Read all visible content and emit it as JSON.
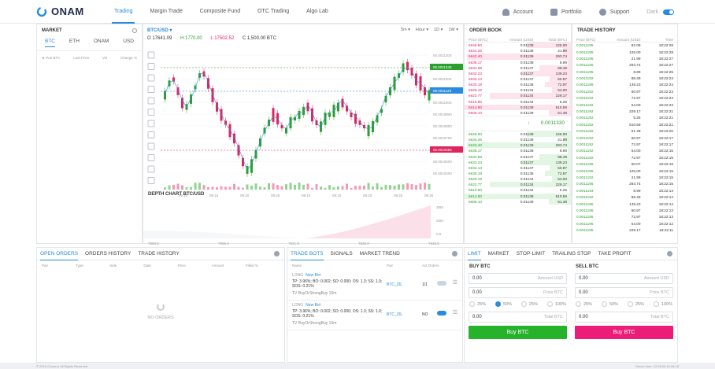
{
  "brand": {
    "name": "ONAM",
    "accent": "#2a8bdd"
  },
  "nav": {
    "items": [
      "Trading",
      "Margin Trade",
      "Composite Fund",
      "OTC Trading",
      "Algo Lab"
    ],
    "active": "Trading"
  },
  "topright": {
    "account": "Account",
    "portfolio": "Portfolio",
    "support": "Support",
    "theme": "Dark"
  },
  "market": {
    "title": "MARKET",
    "tabs": [
      "BTC",
      "ETH",
      "ONAM",
      "USD"
    ],
    "cols": [
      "Pair BTC",
      "Last Price",
      "Vol",
      "Change %"
    ]
  },
  "chart": {
    "pair": "BTC/USD",
    "ohlc": {
      "o": "O 17641.09",
      "h": "H 1770.00",
      "l": "L 17502.52",
      "c": "C 1,500.00 BTC"
    },
    "timeframes": [
      "5m",
      "Hour",
      "1D",
      "1W"
    ],
    "price_labels": [
      "00.0011300",
      "00.0011348",
      "00.0011200",
      "00.0011123",
      "00.0011000",
      "00.0010900",
      "00.0010800",
      "00.0010700",
      "00.0010565",
      "00.0010500",
      "00.0010400"
    ],
    "time_labels": [
      "09:10",
      "09:15",
      "09:20",
      "09:25",
      "09:10",
      "09:15",
      "09:20",
      "09:25",
      "09:30"
    ],
    "depth_title": "DEPTH CHART  BTC/USD",
    "depth_y": [
      "35M",
      "25M",
      "0.0"
    ],
    "depth_x": [
      "7893.8",
      "7898.0",
      "7921.0",
      "7938.9",
      "7938.5"
    ]
  },
  "orderbook": {
    "title": "ORDER BOOK",
    "cols": [
      "Price (BTC)",
      "Amount (USD)",
      "Total (BTC)"
    ],
    "asks": [
      [
        "6646.50",
        "0.01139",
        "125.00"
      ],
      [
        "6644.26",
        "0.01139",
        "21.99"
      ],
      [
        "6642.40",
        "0.01139",
        "293.74"
      ],
      [
        "6638.17",
        "0.01138",
        "8.99"
      ],
      [
        "6634.68",
        "0.01137",
        "88.49"
      ],
      [
        "6632.23",
        "0.01137",
        "139.23"
      ],
      [
        "6632.13",
        "0.01137",
        "60.97"
      ],
      [
        "6630.18",
        "0.01136",
        "72.97"
      ],
      [
        "6626.19",
        "0.01134",
        "54.00"
      ],
      [
        "6622.77",
        "0.01134",
        "229.17"
      ],
      [
        "6616.80",
        "0.01134",
        "5.25"
      ],
      [
        "6614.80",
        "0.01139",
        "610.59"
      ],
      [
        "6606.10",
        "0.01139",
        "61.48"
      ]
    ],
    "mid": "0.0011330",
    "bids": [
      [
        "6646.50",
        "0.01139",
        "125.00"
      ],
      [
        "6644.26",
        "0.01139",
        "21.99"
      ],
      [
        "6642.40",
        "0.01139",
        "293.74"
      ],
      [
        "6638.17",
        "0.01138",
        "8.99"
      ],
      [
        "6634.68",
        "0.01137",
        "88.49"
      ],
      [
        "6632.23",
        "0.01137",
        "139.23"
      ],
      [
        "6632.13",
        "0.01137",
        "60.97"
      ],
      [
        "6630.18",
        "0.01135",
        "72.97"
      ],
      [
        "6626.19",
        "0.01134",
        "54.00"
      ],
      [
        "6622.77",
        "0.01134",
        "229.17"
      ],
      [
        "6616.80",
        "0.01134",
        "5.25"
      ],
      [
        "6614.80",
        "0.01139",
        "610.59"
      ],
      [
        "6606.10",
        "0.01139",
        "61.48"
      ]
    ]
  },
  "history": {
    "title": "TRADE HISTORY",
    "cols": [
      "Price (BTC)",
      "Amount (USD)",
      "Time"
    ],
    "rows": [
      [
        "0.0011195",
        "82.08",
        "18:22:28"
      ],
      [
        "0.0011195",
        "125.00",
        "18:22:28"
      ],
      [
        "0.0011195",
        "21.99",
        "18:22:27"
      ],
      [
        "0.0011195",
        "293.74",
        "18:22:27"
      ],
      [
        "0.0011195",
        "8.99",
        "18:22:25"
      ],
      [
        "0.0011192",
        "88.49",
        "18:22:24"
      ],
      [
        "0.0011188",
        "139.23",
        "18:22:24"
      ],
      [
        "0.0011192",
        "60.97",
        "18:22:23"
      ],
      [
        "0.0011192",
        "72.97",
        "18:22:23"
      ],
      [
        "0.0011192",
        "54.00",
        "18:22:23"
      ],
      [
        "0.0011192",
        "229.17",
        "18:22:21"
      ],
      [
        "0.0011192",
        "5.25",
        "18:22:21"
      ],
      [
        "0.0011192",
        "610.59",
        "18:22:21"
      ],
      [
        "0.0011192",
        "61.48",
        "18:22:20"
      ],
      [
        "0.0011192",
        "60.97",
        "18:22:17"
      ],
      [
        "0.0011192",
        "72.97",
        "18:22:17"
      ],
      [
        "0.0011192",
        "54.00",
        "18:22:16"
      ],
      [
        "0.0011192",
        "72.97",
        "18:22:16"
      ],
      [
        "0.0011195",
        "60.07",
        "18:22:16"
      ],
      [
        "0.0011195",
        "125.00",
        "18:22:15"
      ],
      [
        "0.0011192",
        "21.99",
        "18:22:15"
      ],
      [
        "0.0011195",
        "293.74",
        "18:22:15"
      ],
      [
        "0.0011193",
        "8.99",
        "18:22:14"
      ],
      [
        "0.0011192",
        "88.49",
        "18:22:14"
      ],
      [
        "0.0011195",
        "139.23",
        "18:22:14"
      ],
      [
        "0.0011195",
        "60.97",
        "18:22:13"
      ],
      [
        "0.0011195",
        "72.97",
        "18:22:13"
      ],
      [
        "0.0011195",
        "54.00",
        "18:22:12"
      ],
      [
        "0.0011195",
        "229.17",
        "18:22:11"
      ]
    ]
  },
  "orders": {
    "tabs": [
      "OPEN ORDERS",
      "ORDERS HISTORY",
      "TRADE HISTORY"
    ],
    "cols": [
      "Pair",
      "Type",
      "Side",
      "Date",
      "Price",
      "Amount",
      "Filled %"
    ],
    "empty": "NO ORDERS"
  },
  "bots": {
    "tabs": [
      "TRADE BOTS",
      "SIGNALS",
      "MARKET TREND"
    ],
    "cols": [
      "Name",
      "Pair",
      "Act.Orders"
    ],
    "items": [
      {
        "tag": "LONG",
        "name": "New Bot",
        "desc": "TP: 3.96%; BO: 0.002; SO: 0.000; OS: 1.3; SS: 1.0; SOS: 0.21%",
        "sub": "TV BuyOrStrongBuy 15m",
        "pair": "BTC_ZIL",
        "orders": "1/1"
      },
      {
        "tag": "LONG",
        "name": "New Bot",
        "desc": "TP: 3.96%; BO: 0.002; SO: 0.000; OS: 1.3; SS: 1.0; SOS: 0.21%",
        "sub": "TV BuyOrStrongBuy 15m",
        "pair": "BTC_ZIL",
        "orders": "NO"
      }
    ]
  },
  "trade": {
    "tabs": [
      "LIMIT",
      "MARKET",
      "STOP-LIMIT",
      "TRAILING STOP",
      "TAKE PROFIT"
    ],
    "buy": {
      "title": "BUY BTC",
      "amount": "0.00",
      "amount_unit": "Amount USD",
      "price": "0.00",
      "price_unit": "Price BTC",
      "total": "0.00",
      "total_unit": "Total BTC",
      "button": "Buy BTC",
      "color": "#27b22b"
    },
    "sell": {
      "title": "SELL BTC",
      "amount": "0.00",
      "amount_unit": "Amount USD",
      "price": "0.00",
      "price_unit": "Price BTC",
      "total": "0.00",
      "total_unit": "Total BTC",
      "button": "Buy BTC",
      "color": "#ec1d78"
    },
    "pcts": [
      "25%",
      "50%",
      "25%",
      "100%"
    ]
  },
  "footer": {
    "left": "© 2018 Onam.io All Rights Reserved",
    "right": "Server time: 12:28:06 19.06.18"
  }
}
